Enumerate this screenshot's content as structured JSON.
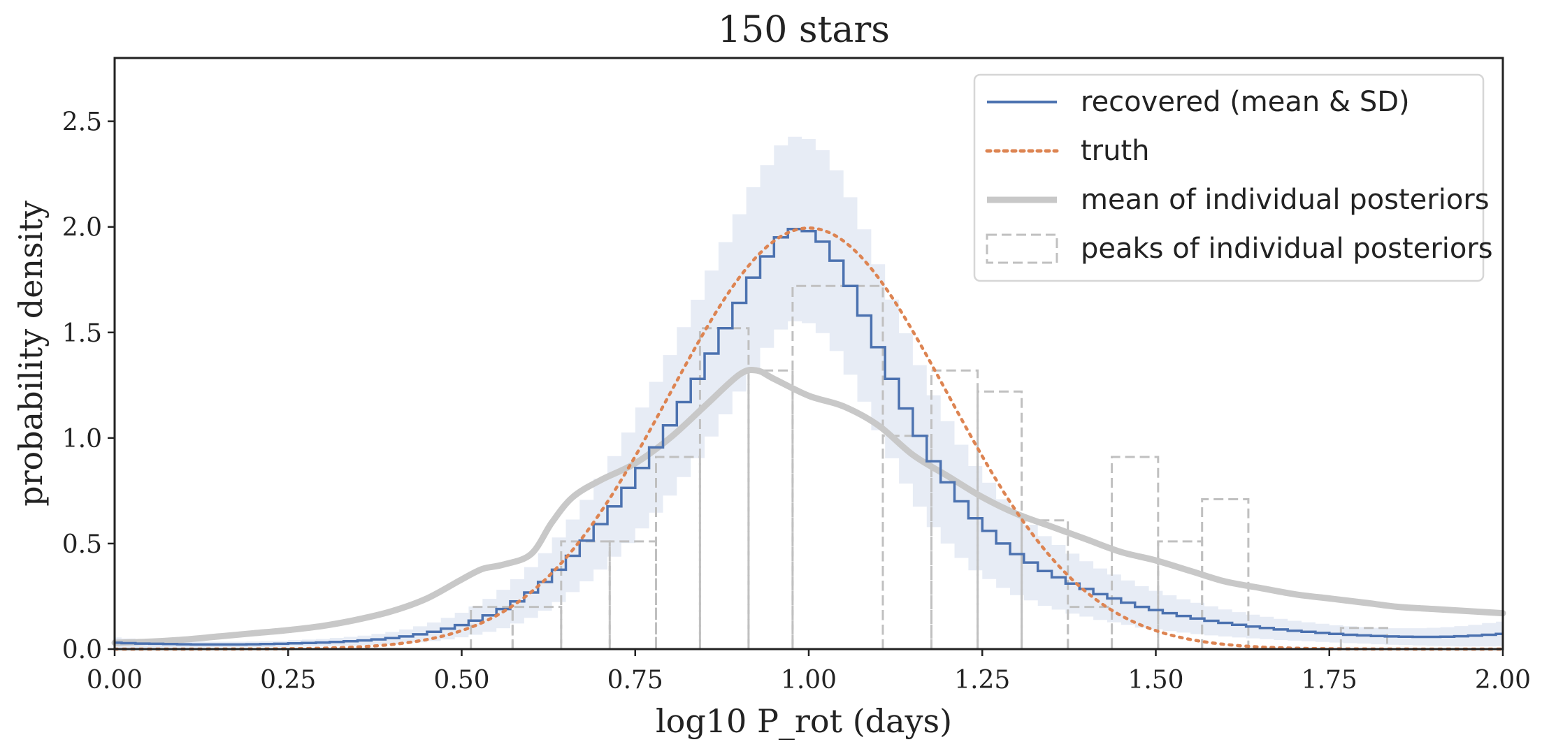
{
  "chart_data": {
    "type": "line",
    "title": "150 stars",
    "xlabel": "log10 P_rot (days)",
    "ylabel": "probability density",
    "xlim": [
      0.0,
      2.0
    ],
    "ylim": [
      0.0,
      2.8
    ],
    "xticks": [
      "0.00",
      "0.25",
      "0.50",
      "0.75",
      "1.00",
      "1.25",
      "1.50",
      "1.75",
      "2.00"
    ],
    "yticks": [
      "0.0",
      "0.5",
      "1.0",
      "1.5",
      "2.0",
      "2.5"
    ],
    "grid": false,
    "legend_position": "top-right",
    "colors": {
      "recovered": "#4c72b0",
      "band": "#dfe5f2",
      "truth": "#dd8452",
      "mean_posterior": "#c8c8c8",
      "peaks": "#c0c0c0"
    },
    "legend": [
      "recovered (mean & SD)",
      "truth",
      "mean of individual posteriors",
      "peaks of individual posteriors"
    ],
    "recovered": {
      "name": "recovered (mean & SD)",
      "step": "mid",
      "x": [
        0.0,
        0.02,
        0.04,
        0.06,
        0.08,
        0.1,
        0.12,
        0.14,
        0.16,
        0.18,
        0.2,
        0.22,
        0.24,
        0.26,
        0.28,
        0.3,
        0.32,
        0.34,
        0.36,
        0.38,
        0.4,
        0.42,
        0.44,
        0.46,
        0.48,
        0.5,
        0.52,
        0.54,
        0.56,
        0.58,
        0.6,
        0.62,
        0.64,
        0.66,
        0.68,
        0.7,
        0.72,
        0.74,
        0.76,
        0.78,
        0.8,
        0.82,
        0.84,
        0.86,
        0.88,
        0.9,
        0.92,
        0.94,
        0.96,
        0.98,
        1.0,
        1.02,
        1.04,
        1.06,
        1.08,
        1.1,
        1.12,
        1.14,
        1.16,
        1.18,
        1.2,
        1.22,
        1.24,
        1.26,
        1.28,
        1.3,
        1.32,
        1.34,
        1.36,
        1.38,
        1.4,
        1.42,
        1.44,
        1.46,
        1.48,
        1.5,
        1.52,
        1.54,
        1.56,
        1.58,
        1.6,
        1.62,
        1.64,
        1.66,
        1.68,
        1.7,
        1.72,
        1.74,
        1.76,
        1.78,
        1.8,
        1.82,
        1.84,
        1.86,
        1.88,
        1.9,
        1.92,
        1.94,
        1.96,
        1.98,
        2.0
      ],
      "y": [
        0.03,
        0.028,
        0.026,
        0.025,
        0.024,
        0.023,
        0.022,
        0.022,
        0.022,
        0.022,
        0.023,
        0.024,
        0.025,
        0.027,
        0.029,
        0.031,
        0.034,
        0.037,
        0.041,
        0.046,
        0.052,
        0.06,
        0.07,
        0.082,
        0.097,
        0.114,
        0.135,
        0.16,
        0.19,
        0.226,
        0.268,
        0.318,
        0.376,
        0.442,
        0.514,
        0.592,
        0.676,
        0.764,
        0.858,
        0.956,
        1.06,
        1.17,
        1.28,
        1.4,
        1.52,
        1.64,
        1.76,
        1.86,
        1.95,
        1.99,
        1.98,
        1.93,
        1.84,
        1.72,
        1.58,
        1.43,
        1.28,
        1.14,
        1.01,
        0.89,
        0.79,
        0.7,
        0.62,
        0.56,
        0.5,
        0.45,
        0.41,
        0.37,
        0.34,
        0.31,
        0.285,
        0.26,
        0.24,
        0.22,
        0.2,
        0.185,
        0.17,
        0.157,
        0.145,
        0.134,
        0.124,
        0.115,
        0.107,
        0.1,
        0.093,
        0.087,
        0.082,
        0.077,
        0.072,
        0.068,
        0.065,
        0.062,
        0.06,
        0.059,
        0.058,
        0.058,
        0.059,
        0.061,
        0.064,
        0.068,
        0.072
      ],
      "sd": [
        0.025,
        0.022,
        0.02,
        0.018,
        0.016,
        0.015,
        0.014,
        0.013,
        0.013,
        0.013,
        0.013,
        0.014,
        0.014,
        0.015,
        0.016,
        0.017,
        0.019,
        0.021,
        0.023,
        0.026,
        0.029,
        0.033,
        0.038,
        0.044,
        0.051,
        0.058,
        0.067,
        0.078,
        0.091,
        0.105,
        0.12,
        0.136,
        0.153,
        0.172,
        0.193,
        0.215,
        0.238,
        0.262,
        0.286,
        0.31,
        0.333,
        0.355,
        0.375,
        0.393,
        0.408,
        0.42,
        0.428,
        0.433,
        0.436,
        0.437,
        0.436,
        0.433,
        0.428,
        0.42,
        0.408,
        0.393,
        0.376,
        0.356,
        0.335,
        0.312,
        0.29,
        0.268,
        0.247,
        0.228,
        0.21,
        0.194,
        0.179,
        0.165,
        0.153,
        0.142,
        0.131,
        0.122,
        0.113,
        0.105,
        0.098,
        0.091,
        0.085,
        0.079,
        0.074,
        0.069,
        0.064,
        0.06,
        0.056,
        0.053,
        0.05,
        0.047,
        0.045,
        0.043,
        0.041,
        0.04,
        0.039,
        0.039,
        0.039,
        0.04,
        0.041,
        0.043,
        0.045,
        0.048,
        0.051,
        0.055,
        0.058
      ]
    },
    "truth": {
      "name": "truth",
      "distribution": "normal",
      "mean": 1.0,
      "sd": 0.2
    },
    "mean_posterior": {
      "name": "mean of individual posteriors",
      "x": [
        0.0,
        0.05,
        0.1,
        0.15,
        0.2,
        0.25,
        0.3,
        0.35,
        0.4,
        0.45,
        0.5,
        0.53,
        0.56,
        0.6,
        0.63,
        0.66,
        0.7,
        0.75,
        0.8,
        0.85,
        0.9,
        0.925,
        0.95,
        1.0,
        1.05,
        1.1,
        1.15,
        1.2,
        1.25,
        1.3,
        1.35,
        1.4,
        1.45,
        1.5,
        1.55,
        1.6,
        1.65,
        1.7,
        1.75,
        1.8,
        1.85,
        1.9,
        1.95,
        2.0
      ],
      "y": [
        0.03,
        0.035,
        0.045,
        0.06,
        0.075,
        0.09,
        0.11,
        0.14,
        0.18,
        0.24,
        0.33,
        0.38,
        0.4,
        0.45,
        0.6,
        0.72,
        0.8,
        0.88,
        1.0,
        1.15,
        1.3,
        1.32,
        1.28,
        1.2,
        1.15,
        1.06,
        0.92,
        0.82,
        0.72,
        0.64,
        0.58,
        0.52,
        0.46,
        0.42,
        0.37,
        0.32,
        0.29,
        0.26,
        0.24,
        0.22,
        0.2,
        0.19,
        0.18,
        0.17
      ]
    },
    "peaks": {
      "name": "peaks of individual posteriors",
      "bin_edges": [
        0.0,
        0.0667,
        0.1333,
        0.2,
        0.2667,
        0.3333,
        0.4,
        0.4667,
        0.5133,
        0.5733,
        0.6433,
        0.7133,
        0.78,
        0.8433,
        0.9133,
        0.9767,
        1.1067,
        1.1767,
        1.2433,
        1.3067,
        1.3733,
        1.4367,
        1.5033,
        1.5667,
        1.6333,
        1.7667,
        1.8333,
        2.0
      ],
      "heights": [
        0.0,
        0.0,
        0.0,
        0.0,
        0.0,
        0.0,
        0.0,
        0.0,
        0.2,
        0.2,
        0.51,
        0.51,
        0.91,
        1.52,
        1.32,
        1.72,
        1.01,
        1.32,
        1.22,
        0.61,
        0.2,
        0.91,
        0.51,
        0.71,
        0.0,
        0.1,
        0.0
      ]
    }
  }
}
